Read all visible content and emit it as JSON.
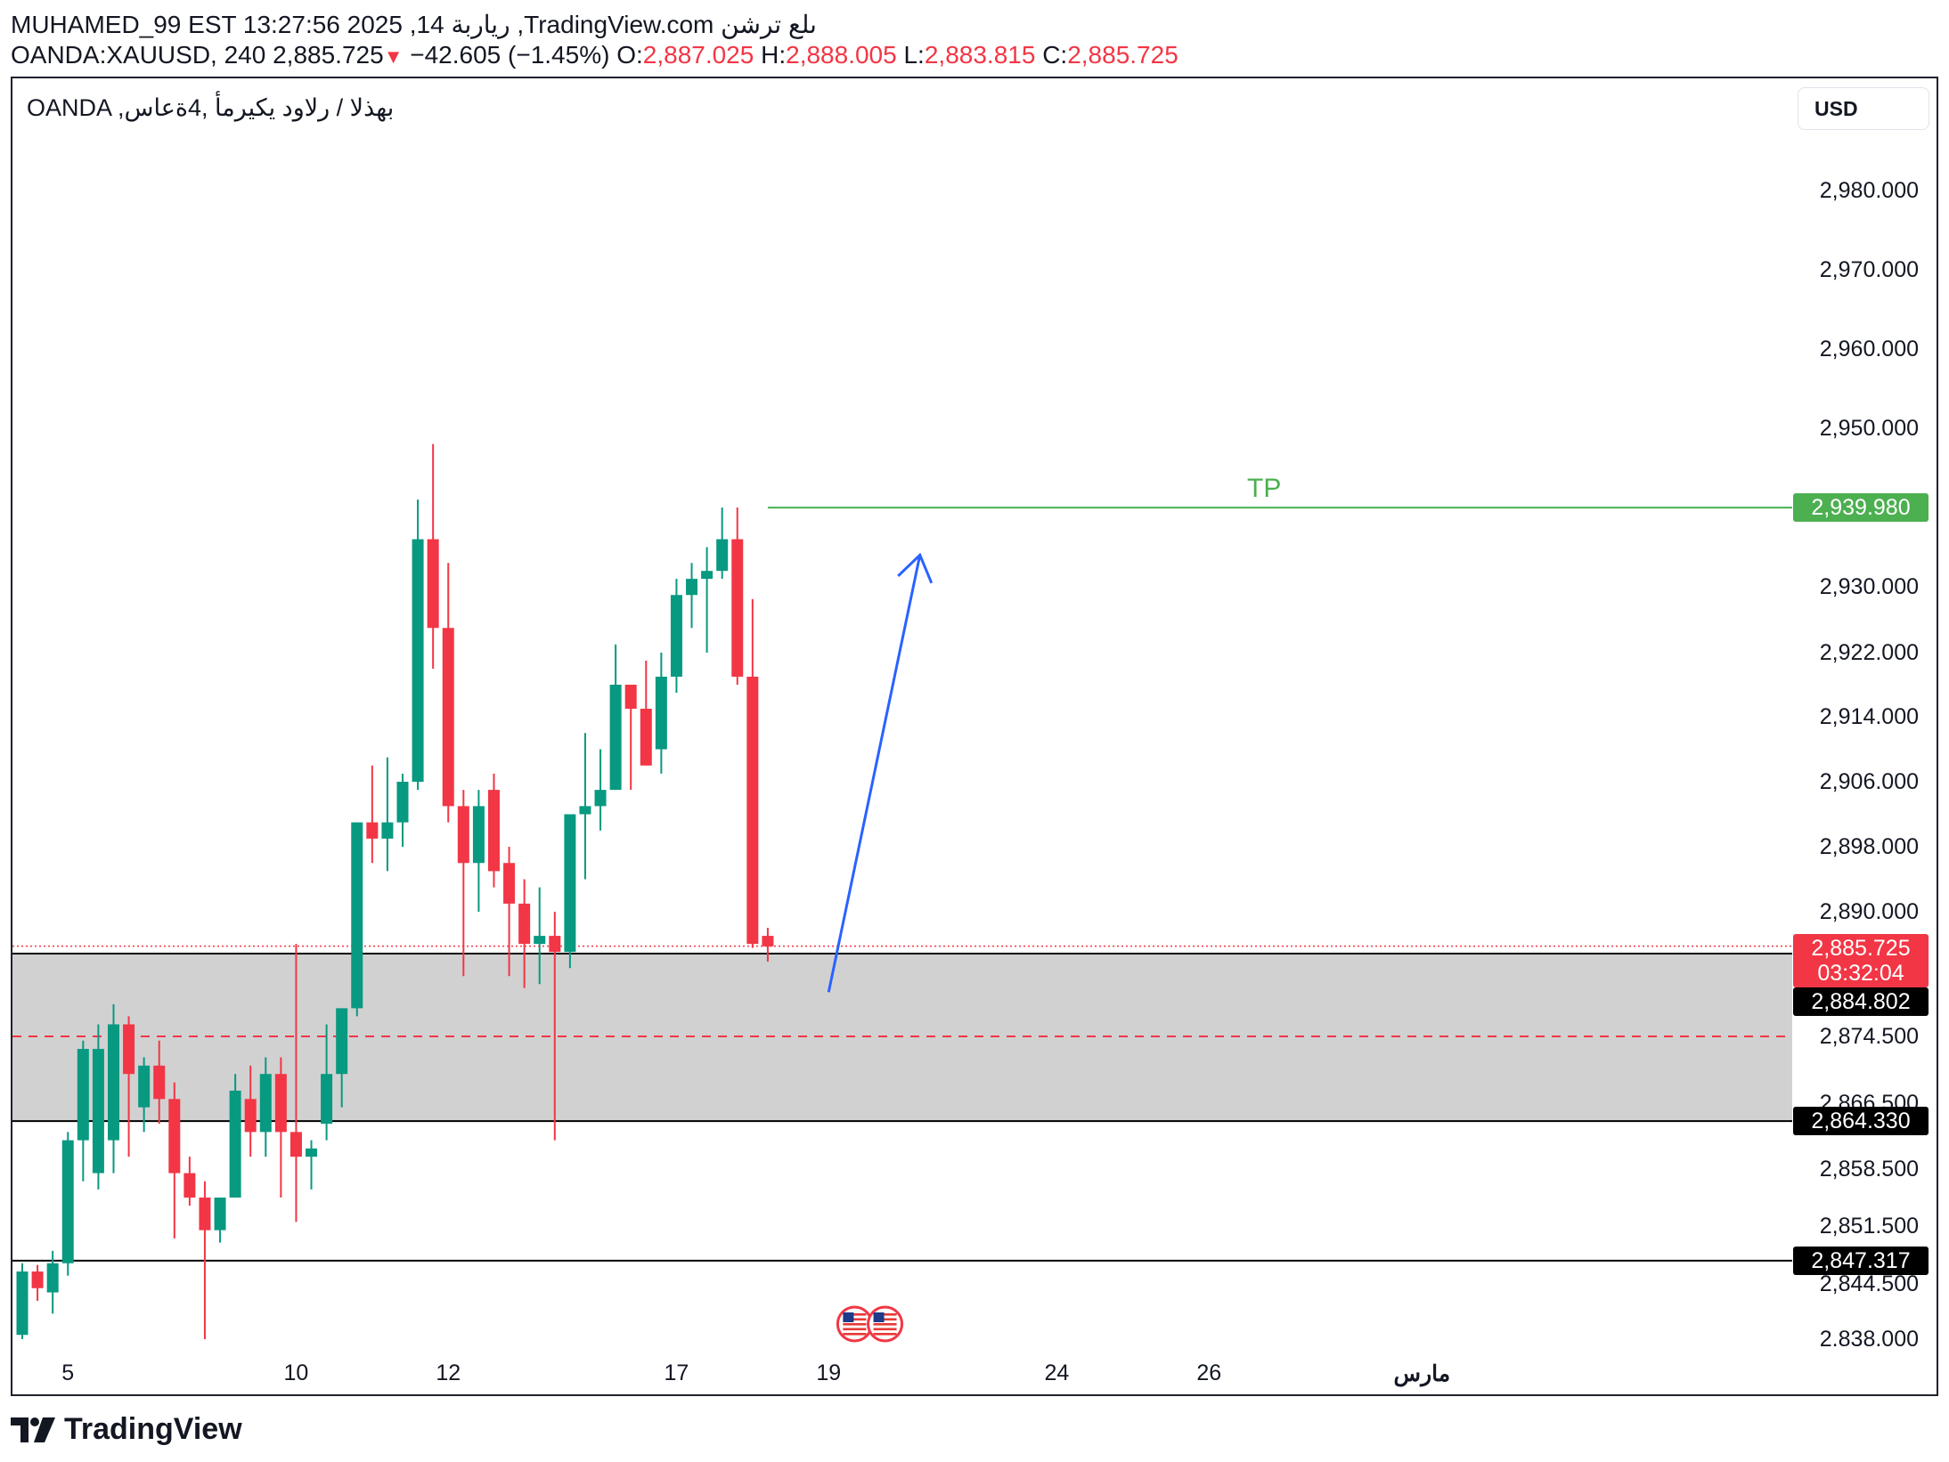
{
  "header": {
    "line1": "MUHAMED_99 EST 13:27:56 2025 ,14 رياربة ,TradingView.com ىلع ترشن",
    "symbol_full": "OANDA:XAUUSD, 240",
    "last": "2,885.725",
    "arrow": "▼",
    "change": "−42.605 (−1.45%)",
    "o_label": "O:",
    "o": "2,887.025",
    "h_label": "H:",
    "h": "2,888.005",
    "l_label": "L:",
    "l": "2,883.815",
    "c_label": "C:",
    "c": "2,885.725"
  },
  "legend": {
    "text": "OANDA ,بهذلا / رلاود يكيرمأ ,4ةعاس"
  },
  "currency_button": "USD",
  "annotations": {
    "tp_label": "TP"
  },
  "price_tags": {
    "tp": "2,939.980",
    "current": "2,885.725",
    "countdown": "03:32:04",
    "zone_top": "2,884.802",
    "zone_bottom": "2,864.330",
    "support": "2,847.317"
  },
  "colors": {
    "up": "#089981",
    "down": "#f23645",
    "tp": "#4caf50",
    "arrow": "#2962ff",
    "zone": "#d1d1d1"
  },
  "branding": "TradingView",
  "chart_data": {
    "type": "candlestick",
    "title": "OANDA:XAUUSD, 240",
    "y_ticks": [
      "2,980.000",
      "2,970.000",
      "2,960.000",
      "2,950.000",
      "2,930.000",
      "2,922.000",
      "2,914.000",
      "2,906.000",
      "2,898.000",
      "2,890.000",
      "2,874.500",
      "2,866.500",
      "2,858.500",
      "2,851.500",
      "2,844.500",
      "2.838.000"
    ],
    "y_tick_values": [
      2980,
      2970,
      2960,
      2950,
      2930,
      2922,
      2914,
      2906,
      2898,
      2890,
      2874.5,
      2866.5,
      2858.5,
      2851.5,
      2844.5,
      2838
    ],
    "x_ticks": [
      "5",
      "10",
      "12",
      "17",
      "19",
      "24",
      "26",
      "مارس"
    ],
    "x_tick_index": [
      3,
      18,
      28,
      43,
      53,
      68,
      78,
      92
    ],
    "candles": [
      [
        2838.5,
        2847.0,
        2838.0,
        2846.0
      ],
      [
        2846.0,
        2846.8,
        2842.5,
        2844.0
      ],
      [
        2843.5,
        2848.5,
        2841.0,
        2847.0
      ],
      [
        2847.0,
        2863.0,
        2845.5,
        2862.0
      ],
      [
        2862.0,
        2874.0,
        2857.0,
        2873.0
      ],
      [
        2858.0,
        2876.0,
        2856.0,
        2873.0
      ],
      [
        2862.0,
        2878.5,
        2858.0,
        2876.0
      ],
      [
        2876.0,
        2877.0,
        2860.0,
        2870.0
      ],
      [
        2866.0,
        2872.0,
        2863.0,
        2871.0
      ],
      [
        2871.0,
        2874.0,
        2864.0,
        2867.0
      ],
      [
        2867.0,
        2869.0,
        2850.0,
        2858.0
      ],
      [
        2858.0,
        2860.0,
        2854.0,
        2855.0
      ],
      [
        2855.0,
        2857.0,
        2838.0,
        2851.0
      ],
      [
        2851.0,
        2855.0,
        2849.5,
        2855.0
      ],
      [
        2855.0,
        2870.0,
        2855.0,
        2868.0
      ],
      [
        2867.0,
        2871.0,
        2860.0,
        2863.0
      ],
      [
        2863.0,
        2872.0,
        2860.0,
        2870.0
      ],
      [
        2870.0,
        2872.0,
        2855.0,
        2863.0
      ],
      [
        2863.0,
        2886.0,
        2852.0,
        2860.0
      ],
      [
        2860.0,
        2862.0,
        2856.0,
        2861.0
      ],
      [
        2864.0,
        2876.0,
        2862.0,
        2870.0
      ],
      [
        2870.0,
        2878.0,
        2866.0,
        2878.0
      ],
      [
        2878.0,
        2901.0,
        2877.0,
        2901.0
      ],
      [
        2901.0,
        2908.0,
        2896.0,
        2899.0
      ],
      [
        2899.0,
        2909.0,
        2895.0,
        2901.0
      ],
      [
        2901.0,
        2907.0,
        2898.0,
        2906.0
      ],
      [
        2906.0,
        2941.0,
        2905.0,
        2936.0
      ],
      [
        2936.0,
        2948.0,
        2920.0,
        2925.0
      ],
      [
        2925.0,
        2933.0,
        2901.0,
        2903.0
      ],
      [
        2903.0,
        2905.0,
        2882.0,
        2896.0
      ],
      [
        2896.0,
        2905.0,
        2890.0,
        2903.0
      ],
      [
        2905.0,
        2907.0,
        2893.0,
        2895.0
      ],
      [
        2896.0,
        2898.0,
        2882.0,
        2891.0
      ],
      [
        2891.0,
        2894.0,
        2880.5,
        2886.0
      ],
      [
        2886.0,
        2893.0,
        2881.0,
        2887.0
      ],
      [
        2887.0,
        2890.0,
        2862.0,
        2885.0
      ],
      [
        2885.0,
        2902.0,
        2883.0,
        2902.0
      ],
      [
        2902.0,
        2912.0,
        2894.0,
        2903.0
      ],
      [
        2903.0,
        2910.0,
        2900.0,
        2905.0
      ],
      [
        2905.0,
        2923.0,
        2905.0,
        2918.0
      ],
      [
        2918.0,
        2918.0,
        2905.0,
        2915.0
      ],
      [
        2915.0,
        2921.0,
        2908.0,
        2908.0
      ],
      [
        2910.0,
        2922.0,
        2907.0,
        2919.0
      ],
      [
        2919.0,
        2931.0,
        2917.0,
        2929.0
      ],
      [
        2929.0,
        2933.0,
        2925.0,
        2931.0
      ],
      [
        2931.0,
        2935.0,
        2922.0,
        2932.0
      ],
      [
        2932.0,
        2940.0,
        2931.0,
        2936.0
      ],
      [
        2936.0,
        2940.0,
        2918.0,
        2919.0
      ],
      [
        2919.0,
        2928.5,
        2885.5,
        2886.0
      ],
      [
        2887.0,
        2888.0,
        2883.8,
        2885.7
      ]
    ],
    "candle_fields": [
      "open",
      "high",
      "low",
      "close"
    ],
    "levels": {
      "tp": 2939.98,
      "current": 2885.725,
      "zone_top": 2884.802,
      "zone_mid": 2874.5,
      "zone_bottom": 2864.33,
      "support": 2847.317
    },
    "arrow": {
      "from_index": 53,
      "from_price": 2880.0,
      "to_index": 59,
      "to_price": 2934.0
    },
    "tp_line_start_index": 49,
    "event_markers": [
      {
        "index": 55,
        "label": "US"
      },
      {
        "index": 57,
        "label": "US"
      }
    ]
  }
}
